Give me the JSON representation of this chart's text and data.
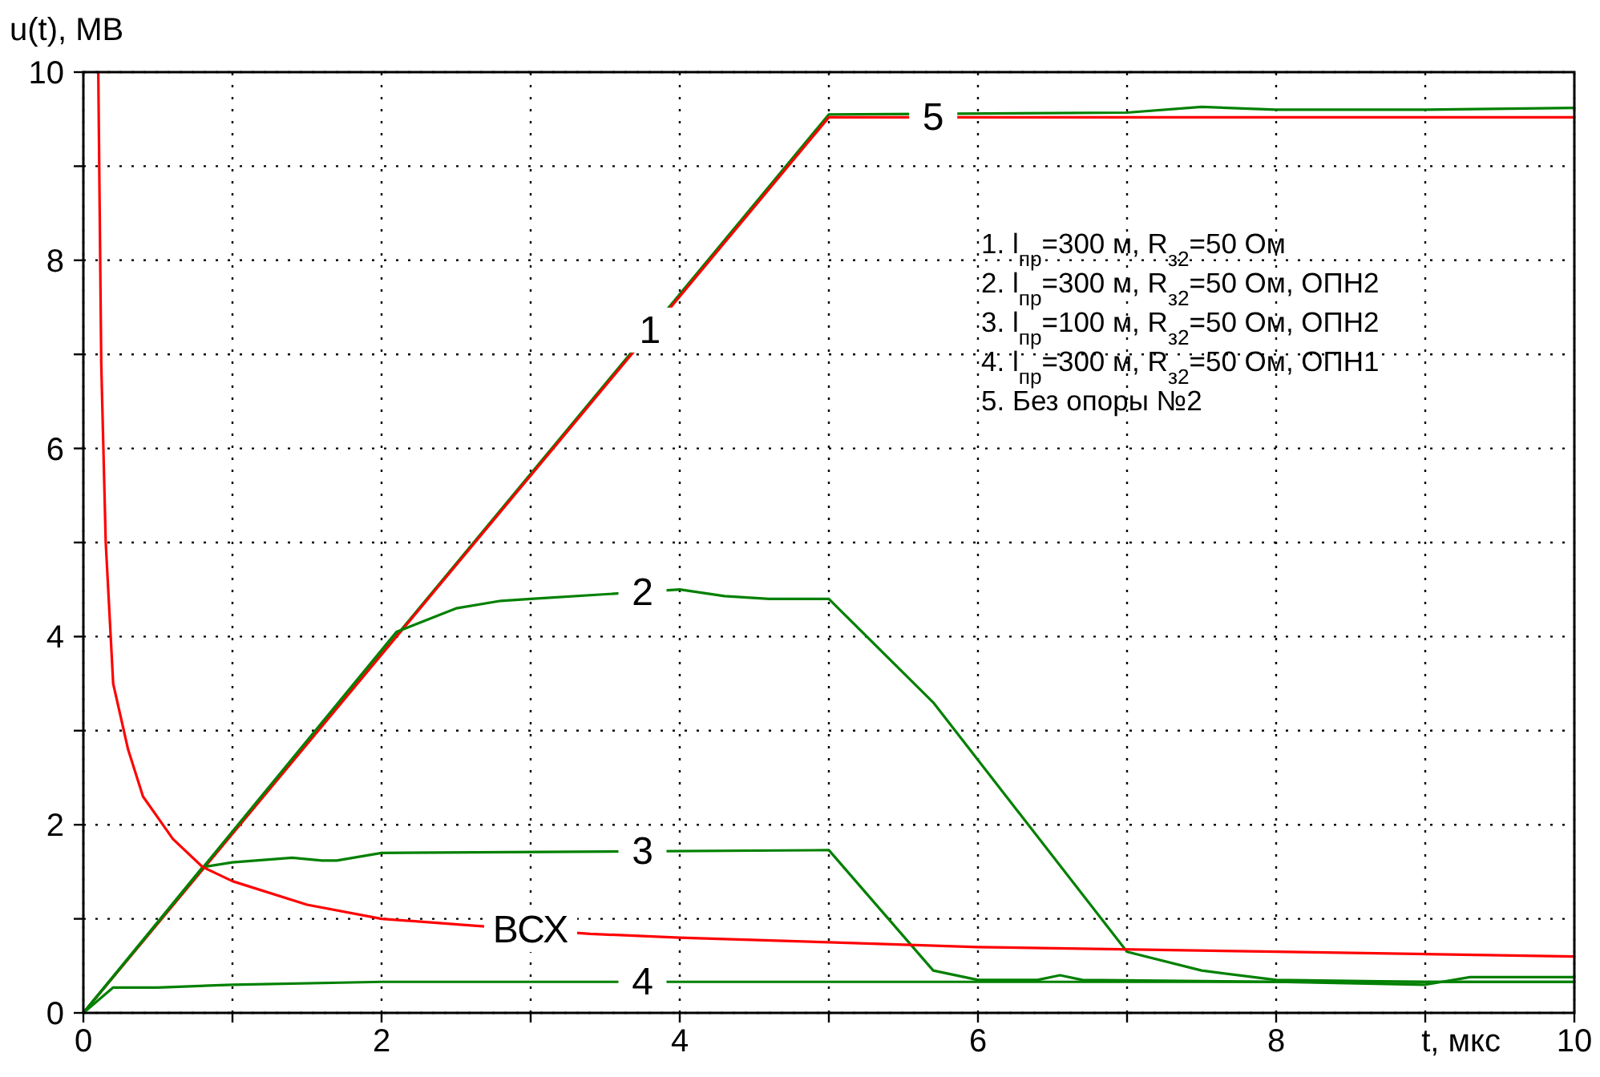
{
  "chart_data": {
    "type": "line",
    "xlabel": "t, мкс",
    "ylabel": "u(t), МВ",
    "xlim": [
      0,
      10
    ],
    "ylim": [
      0,
      10
    ],
    "xticks": [
      0,
      {
        "value": 1,
        "label": null
      },
      2,
      {
        "value": 3,
        "label": null
      },
      4,
      {
        "value": 5,
        "label": null
      },
      6,
      {
        "value": 7,
        "label": null
      },
      8,
      {
        "value": 9,
        "label": null
      },
      10
    ],
    "yticks": [
      0,
      {
        "value": 1,
        "label": null
      },
      2,
      {
        "value": 3,
        "label": null
      },
      4,
      {
        "value": 5,
        "label": null
      },
      6,
      {
        "value": 7,
        "label": null
      },
      8,
      {
        "value": 9,
        "label": null
      },
      10
    ],
    "grid": true,
    "legend": false,
    "marker": "none",
    "line_style": "solid",
    "series": [
      {
        "name": "1",
        "color": "#008000",
        "x": [
          0,
          5,
          7,
          7.5,
          8,
          9,
          10
        ],
        "values": [
          0,
          9.55,
          9.57,
          9.63,
          9.6,
          9.6,
          9.62
        ]
      },
      {
        "name": "5",
        "color": "#ff0000",
        "x": [
          0,
          5,
          10
        ],
        "values": [
          0,
          9.52,
          9.52
        ]
      },
      {
        "name": "2",
        "color": "#008000",
        "x": [
          0,
          2.1,
          2.5,
          2.8,
          3,
          4,
          4.3,
          4.6,
          5,
          5.7,
          7,
          7.5,
          8,
          9,
          10
        ],
        "values": [
          0,
          4.05,
          4.3,
          4.38,
          4.4,
          4.5,
          4.43,
          4.4,
          4.4,
          3.3,
          0.65,
          0.45,
          0.35,
          0.33,
          0.33
        ]
      },
      {
        "name": "3",
        "color": "#008000",
        "x": [
          0,
          0.8,
          1,
          1.4,
          1.6,
          1.7,
          2,
          5,
          5.7,
          6,
          6.4,
          6.55,
          6.7,
          8,
          9,
          9.3,
          10
        ],
        "values": [
          0,
          1.55,
          1.6,
          1.65,
          1.62,
          1.62,
          1.7,
          1.73,
          0.45,
          0.35,
          0.35,
          0.4,
          0.35,
          0.33,
          0.3,
          0.38,
          0.38
        ]
      },
      {
        "name": "4",
        "color": "#008000",
        "x": [
          0,
          0.2,
          0.5,
          1,
          2,
          10
        ],
        "values": [
          0,
          0.27,
          0.27,
          0.3,
          0.33,
          0.33
        ]
      },
      {
        "name": "ВСХ",
        "color": "#ff0000",
        "x": [
          0.1,
          0.12,
          0.15,
          0.2,
          0.3,
          0.4,
          0.6,
          0.8,
          1,
          1.5,
          2,
          2.6,
          3.4,
          4,
          5,
          6,
          8,
          10
        ],
        "values": [
          10,
          6.9,
          5,
          3.5,
          2.8,
          2.3,
          1.85,
          1.55,
          1.4,
          1.15,
          1.0,
          0.93,
          0.84,
          0.8,
          0.75,
          0.7,
          0.65,
          0.6
        ]
      }
    ],
    "annotations": [
      "1. l$_{пр}$=300 м, R$_{з2}$=50 Ом",
      "2. l$_{пр}$=300 м, R$_{з2}$=50 Ом, ОПН2",
      "3. l$_{пр}$=100 м, R$_{з2}$=50 Ом, ОПН2",
      "4. l$_{пр}$=300 м, R$_{з2}$=50 Ом, ОПН1",
      "5. Без опоры №2"
    ]
  }
}
